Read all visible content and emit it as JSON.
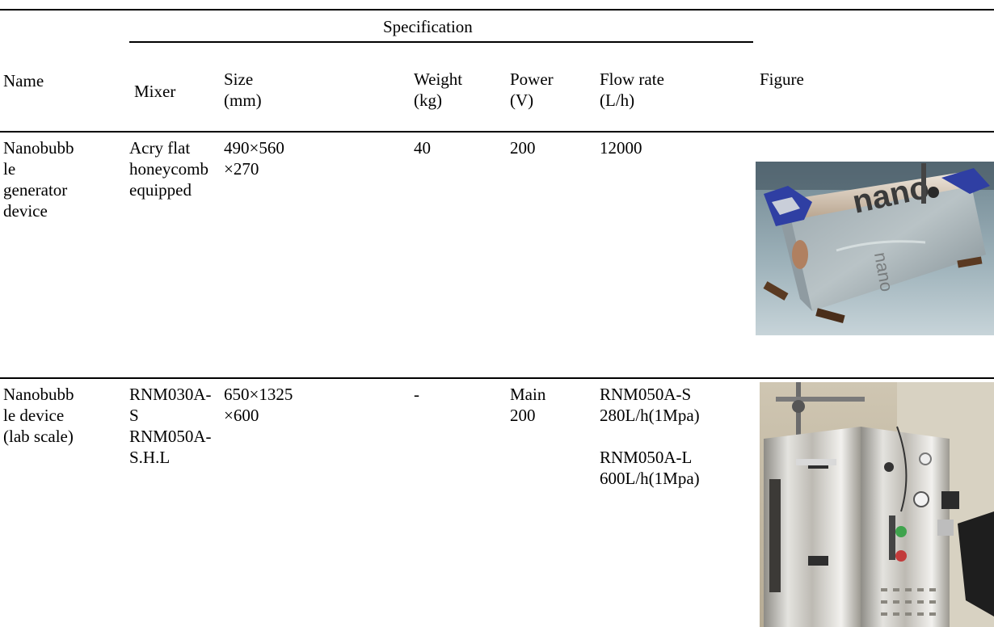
{
  "table": {
    "spec_header": "Specification",
    "headers": {
      "name": "Name",
      "mixer": "Mixer",
      "size": [
        "Size",
        "(mm)"
      ],
      "weight": [
        "Weight",
        "(kg)"
      ],
      "power": [
        "Power",
        "(V)"
      ],
      "flow": [
        "Flow rate",
        "(L/h)"
      ],
      "figure": "Figure"
    },
    "rows": [
      {
        "name": [
          "Nanobubb",
          "le",
          "generator",
          "device"
        ],
        "mixer": [
          "Acry flat",
          "honeycomb",
          "equipped"
        ],
        "size": [
          "490×560",
          "×270"
        ],
        "weight": [
          "40"
        ],
        "power": [
          "200"
        ],
        "flow": [
          "12000"
        ],
        "figure_icon": "nanobubble-generator-photo"
      },
      {
        "name": [
          "Nanobubb",
          "le device",
          "(lab scale)"
        ],
        "mixer": [
          "RNM030A-",
          "S",
          "RNM050A-",
          "S.H.L"
        ],
        "size": [
          "650×1325",
          "×600"
        ],
        "weight": [
          "-"
        ],
        "power": [
          "Main",
          "200"
        ],
        "flow": [
          "RNM050A-S",
          "280L/h(1Mpa)",
          "",
          "RNM050A-L",
          "600L/h(1Mpa)"
        ],
        "figure_icon": "lab-scale-device-photo"
      }
    ]
  },
  "colors": {
    "text": "#000000",
    "rule": "#000000",
    "background": "#ffffff"
  }
}
